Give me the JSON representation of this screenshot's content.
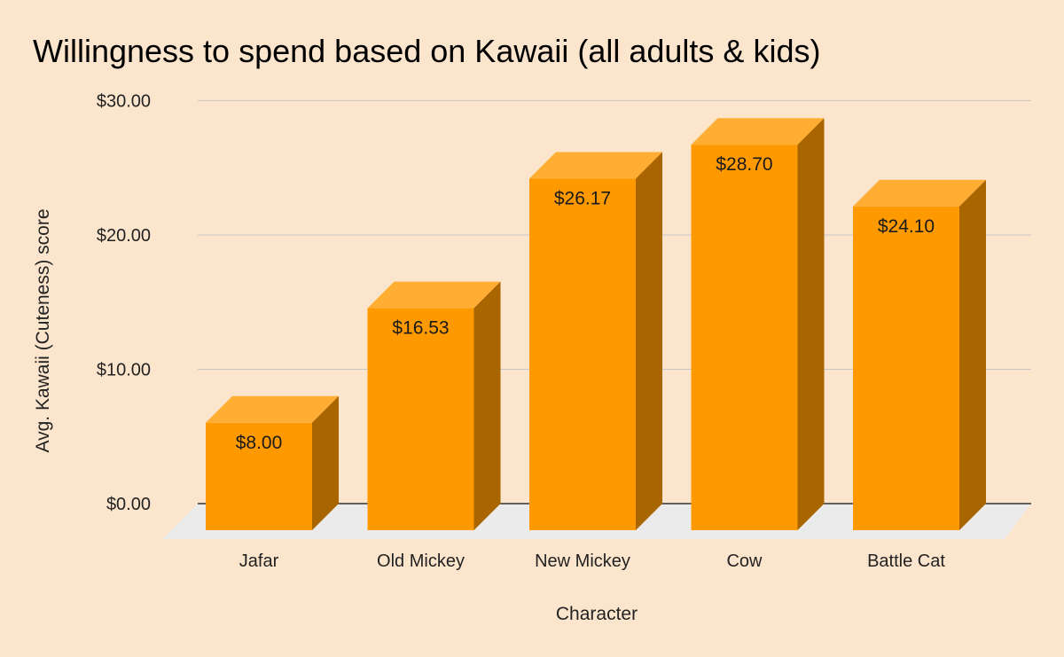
{
  "chart_data": {
    "type": "bar",
    "title": "Willingness to spend based on Kawaii (all adults & kids)",
    "xlabel": "Character",
    "ylabel": "Avg. Kawaii (Cuteness) score",
    "categories": [
      "Jafar",
      "Old Mickey",
      "New Mickey",
      "Cow",
      "Battle Cat"
    ],
    "values": [
      8.0,
      16.53,
      26.17,
      28.7,
      24.1
    ],
    "value_labels": [
      "$8.00",
      "$16.53",
      "$26.17",
      "$28.70",
      "$24.10"
    ],
    "yticks": [
      0,
      10,
      20,
      30
    ],
    "ytick_labels": [
      "$0.00",
      "$10.00",
      "$20.00",
      "$30.00"
    ],
    "ylim": [
      0,
      30
    ],
    "grid": true,
    "legend": "none",
    "style": "3d",
    "colors": {
      "bar_front": "#ff9900",
      "bar_top": "#ffad33",
      "bar_side": "#a86500",
      "floor": "#ebebeb",
      "gridline": "#c8c8c8",
      "baseline": "#333333",
      "background": "#fce5cd"
    }
  }
}
